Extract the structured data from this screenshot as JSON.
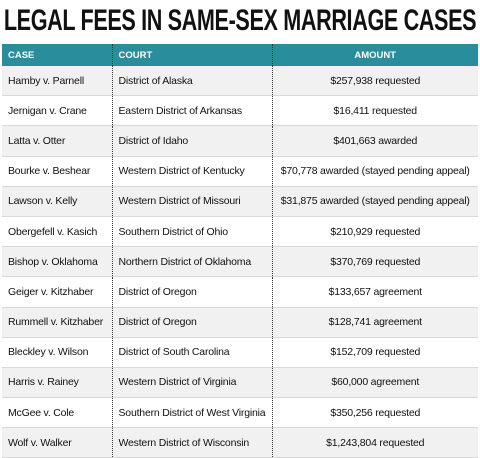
{
  "header": {
    "title": "LEGAL FEES IN SAME-SEX MARRIAGE CASES"
  },
  "table": {
    "columns": [
      "CASE",
      "COURT",
      "AMOUNT"
    ],
    "rows": [
      [
        "Hamby v. Parnell",
        "District of Alaska",
        "$257,938 requested"
      ],
      [
        "Jernigan v. Crane",
        "Eastern District of Arkansas",
        "$16,411 requested"
      ],
      [
        "Latta v. Otter",
        "District of Idaho",
        "$401,663 awarded"
      ],
      [
        "Bourke v. Beshear",
        "Western District of Kentucky",
        "$70,778 awarded (stayed pending appeal)"
      ],
      [
        "Lawson v. Kelly",
        "Western District of Missouri",
        "$31,875 awarded (stayed pending appeal)"
      ],
      [
        "Obergefell v. Kasich",
        "Southern District of Ohio",
        "$210,929 requested"
      ],
      [
        "Bishop v. Oklahoma",
        "Northern District of Oklahoma",
        "$370,769 requested"
      ],
      [
        "Geiger v. Kitzhaber",
        "District of Oregon",
        "$133,657 agreement"
      ],
      [
        "Rummell v. Kitzhaber",
        "District of Oregon",
        "$128,741 agreement"
      ],
      [
        "Bleckley v. Wilson",
        "District of South Carolina",
        "$152,709 requested"
      ],
      [
        "Harris v. Rainey",
        "Western District of Virginia",
        "$60,000 agreement"
      ],
      [
        "McGee v. Cole",
        "Southern District of West Virginia",
        "$350,256 requested"
      ],
      [
        "Wolf v. Walker",
        "Western District of Wisconsin",
        "$1,243,804 requested"
      ]
    ]
  }
}
